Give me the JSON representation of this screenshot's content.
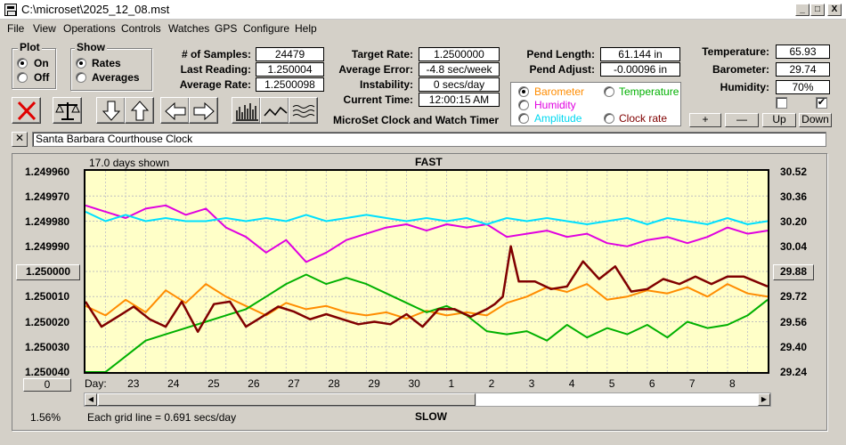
{
  "window": {
    "title": "C:\\microset\\2025_12_08.mst",
    "min": "_",
    "max": "□",
    "close": "X"
  },
  "menu": [
    "File",
    "View",
    "Operations",
    "Controls",
    "Watches",
    "GPS",
    "Configure",
    "Help"
  ],
  "plot_group": {
    "label": "Plot",
    "on": "On",
    "off": "Off",
    "selected": "On"
  },
  "show_group": {
    "label": "Show",
    "rates": "Rates",
    "averages": "Averages",
    "selected": "Rates"
  },
  "stats": {
    "samples_label": "# of Samples:",
    "samples": "24479",
    "last_reading_label": "Last Reading:",
    "last_reading": "1.250004",
    "average_rate_label": "Average Rate:",
    "average_rate": "1.2500098",
    "target_rate_label": "Target Rate:",
    "target_rate": "1.2500000",
    "average_error_label": "Average Error:",
    "average_error": "-4.8 sec/week",
    "instability_label": "Instability:",
    "instability": "0 secs/day",
    "current_time_label": "Current Time:",
    "current_time": "12:00:15 AM",
    "pend_length_label": "Pend Length:",
    "pend_length": "61.144 in",
    "pend_adjust_label": "Pend Adjust:",
    "pend_adjust": "-0.00096 in",
    "temperature_label": "Temperature:",
    "temperature": "65.93",
    "barometer_label": "Barometer:",
    "barometer": "29.74",
    "humidity_label": "Humidity:",
    "humidity": "70%"
  },
  "app_title": "MicroSet Clock and Watch Timer",
  "series_select": {
    "barometer": "Barometer",
    "temperature": "Temperature",
    "humidity": "Humidity",
    "amplitude": "Amplitude",
    "clock_rate": "Clock rate",
    "selected": "Barometer"
  },
  "adjust_buttons": {
    "plus": "+",
    "minus": "—",
    "up": "Up",
    "down": "Down"
  },
  "checkboxes": {
    "left_checked": false,
    "right_checked": true
  },
  "clock_name": "Santa Barbara Courthouse Clock",
  "clear_button": "✕",
  "colors": {
    "barometer": "#ff8c00",
    "temperature": "#00b000",
    "humidity": "#e000e0",
    "amplitude": "#00e0ff",
    "clock_rate": "#800000",
    "plot_bg": "#ffffc8"
  },
  "chart_data": {
    "type": "line",
    "days_shown": "17.0 days shown",
    "top_label": "FAST",
    "bottom_label": "SLOW",
    "grid_note": "Each grid line = 0.691 secs/day",
    "left_axis": {
      "ticks": [
        "1.249960",
        "1.249970",
        "1.249980",
        "1.249990",
        "1.250000",
        "1.250010",
        "1.250020",
        "1.250030",
        "1.250040"
      ],
      "values": [
        1.24996,
        1.24997,
        1.24998,
        1.24999,
        1.25,
        1.25001,
        1.25002,
        1.25003,
        1.25004
      ],
      "range": [
        1.25004,
        1.24996
      ],
      "center_box": "1.250000"
    },
    "right_axis": {
      "ticks": [
        "30.52",
        "30.36",
        "30.20",
        "30.04",
        "29.88",
        "29.72",
        "29.56",
        "29.40",
        "29.24"
      ],
      "values": [
        30.52,
        30.36,
        30.2,
        30.04,
        29.88,
        29.72,
        29.56,
        29.4,
        29.24
      ],
      "range": [
        29.24,
        30.52
      ],
      "center_box": "29.88"
    },
    "x_label": "Day:",
    "x_days": [
      "23",
      "24",
      "25",
      "26",
      "27",
      "28",
      "29",
      "30",
      "1",
      "2",
      "3",
      "4",
      "5",
      "6",
      "7",
      "8"
    ],
    "x_range": [
      -0.2,
      16.8
    ],
    "x_day_index": [
      1,
      2,
      3,
      4,
      5,
      6,
      7,
      8,
      9,
      10,
      11,
      12,
      13,
      14,
      15,
      16
    ],
    "bottom_left_box": "0",
    "bottom_left_pct": "1.56%",
    "grid": true,
    "series": [
      {
        "name": "Barometer",
        "color": "#ff8c00",
        "axis": "right",
        "x": [
          -0.2,
          0.3,
          0.8,
          1.3,
          1.8,
          2.3,
          2.8,
          3.3,
          3.8,
          4.3,
          4.8,
          5.3,
          5.8,
          6.3,
          6.8,
          7.3,
          7.8,
          8.3,
          8.8,
          9.3,
          9.8,
          10.3,
          10.8,
          11.3,
          11.8,
          12.3,
          12.8,
          13.3,
          13.8,
          14.3,
          14.8,
          15.3,
          15.8,
          16.3,
          16.8
        ],
        "y": [
          29.66,
          29.6,
          29.7,
          29.62,
          29.76,
          29.68,
          29.8,
          29.72,
          29.66,
          29.6,
          29.68,
          29.64,
          29.66,
          29.62,
          29.6,
          29.62,
          29.58,
          29.63,
          29.6,
          29.62,
          29.6,
          29.68,
          29.72,
          29.78,
          29.75,
          29.8,
          29.7,
          29.72,
          29.76,
          29.74,
          29.78,
          29.72,
          29.8,
          29.74,
          29.72
        ]
      },
      {
        "name": "Temperature",
        "color": "#00b000",
        "axis": "right",
        "x": [
          -0.2,
          0.3,
          0.8,
          1.3,
          1.8,
          2.3,
          2.8,
          3.3,
          3.8,
          4.3,
          4.8,
          5.3,
          5.8,
          6.3,
          6.8,
          7.3,
          7.8,
          8.3,
          8.8,
          9.3,
          9.8,
          10.3,
          10.8,
          11.3,
          11.8,
          12.3,
          12.8,
          13.3,
          13.8,
          14.3,
          14.8,
          15.3,
          15.8,
          16.3,
          16.8
        ],
        "y": [
          29.24,
          29.24,
          29.34,
          29.44,
          29.48,
          29.52,
          29.56,
          29.6,
          29.64,
          29.72,
          29.8,
          29.86,
          29.8,
          29.84,
          29.8,
          29.74,
          29.68,
          29.62,
          29.66,
          29.6,
          29.5,
          29.48,
          29.5,
          29.44,
          29.54,
          29.46,
          29.52,
          29.48,
          29.54,
          29.46,
          29.56,
          29.52,
          29.54,
          29.6,
          29.7
        ]
      },
      {
        "name": "Humidity",
        "color": "#e000e0",
        "axis": "right",
        "x": [
          -0.2,
          0.3,
          0.8,
          1.3,
          1.8,
          2.3,
          2.8,
          3.3,
          3.8,
          4.3,
          4.8,
          5.3,
          5.8,
          6.3,
          6.8,
          7.3,
          7.8,
          8.3,
          8.8,
          9.3,
          9.8,
          10.3,
          10.8,
          11.3,
          11.8,
          12.3,
          12.8,
          13.3,
          13.8,
          14.3,
          14.8,
          15.3,
          15.8,
          16.3,
          16.8
        ],
        "y": [
          30.3,
          30.26,
          30.22,
          30.28,
          30.3,
          30.24,
          30.28,
          30.16,
          30.1,
          30.0,
          30.08,
          29.94,
          30.0,
          30.08,
          30.12,
          30.16,
          30.18,
          30.14,
          30.18,
          30.16,
          30.18,
          30.1,
          30.12,
          30.14,
          30.1,
          30.12,
          30.06,
          30.04,
          30.08,
          30.1,
          30.06,
          30.1,
          30.16,
          30.12,
          30.14
        ]
      },
      {
        "name": "Amplitude",
        "color": "#00e0ff",
        "axis": "right",
        "x": [
          -0.2,
          0.3,
          0.8,
          1.3,
          1.8,
          2.3,
          2.8,
          3.3,
          3.8,
          4.3,
          4.8,
          5.3,
          5.8,
          6.3,
          6.8,
          7.3,
          7.8,
          8.3,
          8.8,
          9.3,
          9.8,
          10.3,
          10.8,
          11.3,
          11.8,
          12.3,
          12.8,
          13.3,
          13.8,
          14.3,
          14.8,
          15.3,
          15.8,
          16.3,
          16.8
        ],
        "y": [
          30.26,
          30.2,
          30.24,
          30.2,
          30.22,
          30.2,
          30.2,
          30.22,
          30.2,
          30.22,
          30.2,
          30.24,
          30.2,
          30.22,
          30.24,
          30.22,
          30.2,
          30.22,
          30.2,
          30.22,
          30.18,
          30.22,
          30.2,
          30.22,
          30.2,
          30.18,
          30.2,
          30.22,
          30.18,
          30.22,
          30.2,
          30.18,
          30.22,
          30.18,
          30.2
        ]
      },
      {
        "name": "Clock rate",
        "color": "#800000",
        "axis": "left",
        "x": [
          -0.2,
          0.2,
          0.6,
          1.0,
          1.4,
          1.8,
          2.2,
          2.6,
          3.0,
          3.4,
          3.8,
          4.2,
          4.6,
          5.0,
          5.4,
          5.8,
          6.2,
          6.6,
          7.0,
          7.4,
          7.8,
          8.2,
          8.6,
          9.0,
          9.4,
          9.8,
          10.0,
          10.2,
          10.4,
          10.6,
          11.0,
          11.4,
          11.8,
          12.2,
          12.6,
          13.0,
          13.4,
          13.8,
          14.2,
          14.6,
          15.0,
          15.4,
          15.8,
          16.2,
          16.8
        ],
        "y": [
          1.250012,
          1.250022,
          1.250018,
          1.250014,
          1.250019,
          1.250022,
          1.250012,
          1.250024,
          1.250013,
          1.250012,
          1.250022,
          1.250018,
          1.250014,
          1.250016,
          1.250019,
          1.250017,
          1.250019,
          1.250021,
          1.25002,
          1.250021,
          1.250017,
          1.250022,
          1.250015,
          1.250015,
          1.250018,
          1.250015,
          1.250013,
          1.25001,
          1.24999,
          1.250004,
          1.250004,
          1.250007,
          1.250006,
          1.249996,
          1.250003,
          1.249998,
          1.250008,
          1.250007,
          1.250003,
          1.250005,
          1.250002,
          1.250005,
          1.250002,
          1.250002,
          1.250006
        ]
      }
    ]
  }
}
